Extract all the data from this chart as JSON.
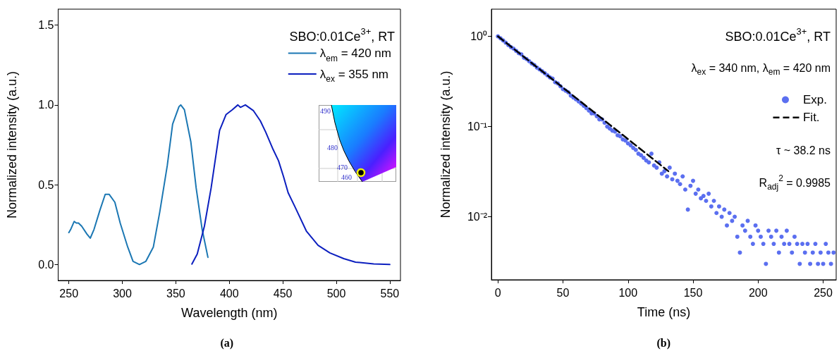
{
  "chart_data": [
    {
      "type": "line",
      "title": "(a)",
      "xlabel": "Wavelength (nm)",
      "ylabel": "Normalized intensity (a.u.)",
      "annotations": [
        "SBO:0.01Ce$^{3+}$, RT",
        "490",
        "480",
        "470",
        "460"
      ],
      "xlim": [
        240,
        560
      ],
      "xticks": [
        250,
        300,
        350,
        400,
        450,
        500,
        550
      ],
      "ylim": [
        -0.1,
        1.6
      ],
      "yticks": [
        {
          "value": 0,
          "label": "0.0"
        },
        {
          "value": 0.5,
          "label": "0.5"
        },
        {
          "value": 1,
          "label": "1.0"
        },
        {
          "value": 1.5,
          "label": "1.5"
        }
      ],
      "legend": "top right",
      "series": [
        {
          "name": "λ$_{em}$ = 420 nm",
          "color": "#1b77b3",
          "x": [
            250,
            251.7,
            255,
            257,
            259,
            262,
            267,
            270,
            273.5,
            279,
            284,
            287.6,
            293,
            298,
            305,
            310,
            316,
            322,
            329,
            335,
            342,
            347,
            353,
            354.6,
            358,
            364,
            369,
            374.6,
            380
          ],
          "values": [
            0.2,
            0.22,
            0.27,
            0.26,
            0.26,
            0.24,
            0.19,
            0.165,
            0.22,
            0.34,
            0.44,
            0.44,
            0.39,
            0.26,
            0.11,
            0.02,
            0.0,
            0.02,
            0.11,
            0.33,
            0.62,
            0.88,
            0.99,
            1.0,
            0.97,
            0.77,
            0.48,
            0.22,
            0.045
          ]
        },
        {
          "name": "λ$_{ex}$ = 355 nm",
          "color": "#0c1fbf",
          "x": [
            365,
            370,
            376.7,
            383,
            390.9,
            397,
            402.8,
            408,
            410.4,
            415,
            422.4,
            429,
            434,
            441,
            446,
            450.7,
            455,
            461.5,
            472,
            483,
            494,
            507,
            518,
            535,
            550
          ],
          "values": [
            0.003,
            0.066,
            0.24,
            0.48,
            0.84,
            0.94,
            0.97,
            1.0,
            0.985,
            1.0,
            0.965,
            0.9,
            0.83,
            0.72,
            0.65,
            0.55,
            0.45,
            0.36,
            0.21,
            0.12,
            0.073,
            0.037,
            0.015,
            0.004,
            0.0
          ]
        }
      ]
    },
    {
      "type": "scatter",
      "title": "(b)",
      "xlabel": "Time (ns)",
      "ylabel": "Normalized intensity (a.u.)",
      "annotations": [
        "SBO:0.01Ce$^{3+}$, RT",
        "λ$_{ex}$ = 340 nm, λ$_{em}$ = 420 nm",
        "τ ~ 38.2 ns",
        "R$_{adj}$$^{2}$ = 0.9985"
      ],
      "xlim": [
        -5,
        260
      ],
      "xticks": [
        0,
        50,
        100,
        150,
        200,
        250
      ],
      "ylim": [
        0.002,
        2
      ],
      "yticks": [
        {
          "value": 0.01,
          "label": "10⁻²"
        },
        {
          "value": 0.1,
          "label": "10⁻¹"
        },
        {
          "value": 1,
          "label": "10⁰"
        }
      ],
      "log": true,
      "legend": "right",
      "series": [
        {
          "name": "Exp.",
          "color": "#5b6ff0",
          "marker": "circle",
          "x": [
            0,
            2,
            4,
            6,
            8,
            10,
            12,
            14,
            16,
            18,
            20,
            22,
            24,
            26,
            28,
            30,
            32,
            34,
            36,
            38,
            40,
            42,
            44,
            46,
            48,
            50,
            52,
            54,
            56,
            58,
            60,
            62,
            64,
            66,
            68,
            70,
            72,
            74,
            76,
            78,
            80,
            82,
            84,
            86,
            88,
            90,
            92,
            94,
            96,
            98,
            100,
            102,
            104,
            106,
            108,
            110,
            112,
            114,
            116,
            118,
            120,
            122,
            124,
            126,
            128,
            130,
            132,
            134,
            136,
            138,
            140,
            142,
            144,
            146,
            148,
            150,
            152,
            154,
            156,
            158,
            160,
            162,
            164,
            166,
            168,
            170,
            172,
            174,
            176,
            178,
            180,
            182,
            184,
            186,
            188,
            190,
            192,
            194,
            196,
            198,
            200,
            202,
            204,
            206,
            208,
            210,
            212,
            214,
            216,
            218,
            220,
            222,
            224,
            226,
            228,
            230,
            232,
            234,
            236,
            238,
            240,
            242,
            244,
            246,
            248,
            250,
            252,
            254,
            256,
            258
          ],
          "values": [
            1.0,
            0.95,
            0.9,
            0.85,
            0.8,
            0.76,
            0.73,
            0.69,
            0.65,
            0.63,
            0.58,
            0.56,
            0.53,
            0.5,
            0.48,
            0.45,
            0.43,
            0.41,
            0.39,
            0.37,
            0.35,
            0.34,
            0.31,
            0.3,
            0.28,
            0.26,
            0.25,
            0.24,
            0.22,
            0.21,
            0.2,
            0.19,
            0.18,
            0.17,
            0.16,
            0.15,
            0.14,
            0.14,
            0.13,
            0.12,
            0.12,
            0.11,
            0.1,
            0.095,
            0.09,
            0.088,
            0.08,
            0.078,
            0.072,
            0.07,
            0.065,
            0.062,
            0.058,
            0.055,
            0.05,
            0.048,
            0.045,
            0.042,
            0.04,
            0.05,
            0.037,
            0.035,
            0.04,
            0.03,
            0.032,
            0.028,
            0.035,
            0.026,
            0.03,
            0.025,
            0.023,
            0.028,
            0.02,
            0.012,
            0.022,
            0.025,
            0.018,
            0.02,
            0.016,
            0.017,
            0.015,
            0.018,
            0.013,
            0.015,
            0.011,
            0.013,
            0.01,
            0.012,
            0.008,
            0.011,
            0.009,
            0.01,
            0.006,
            0.004,
            0.008,
            0.007,
            0.009,
            0.006,
            0.005,
            0.008,
            0.007,
            0.006,
            0.005,
            0.003,
            0.007,
            0.006,
            0.005,
            0.007,
            0.004,
            0.006,
            0.005,
            0.007,
            0.005,
            0.004,
            0.006,
            0.005,
            0.003,
            0.005,
            0.004,
            0.005,
            0.003,
            0.004,
            0.005,
            0.003,
            0.004,
            0.003,
            0.005,
            0.004,
            0.003,
            0.004
          ]
        },
        {
          "name": "Fit.",
          "type": "line",
          "color": "#000000",
          "line_style": "dashed",
          "marker": "none",
          "x": [
            0,
            65,
            131
          ],
          "values": [
            1.0,
            0.182,
            0.032
          ]
        }
      ]
    }
  ]
}
